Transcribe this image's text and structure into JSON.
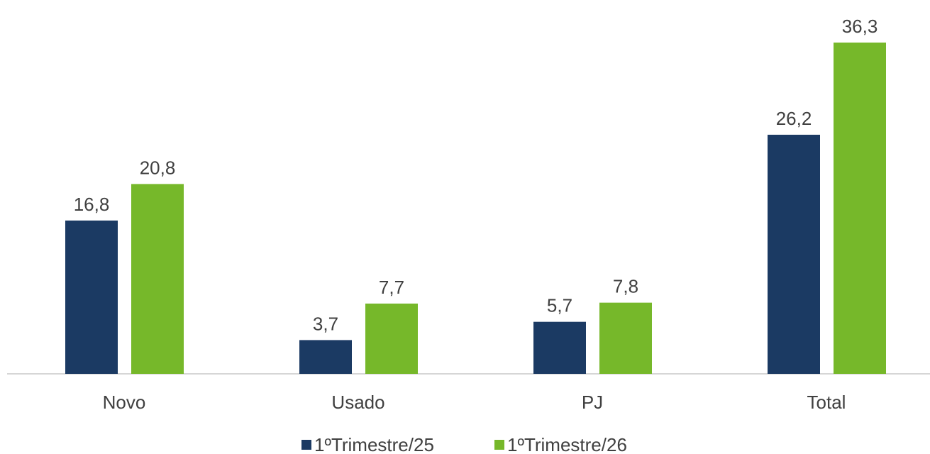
{
  "chart_data": {
    "type": "bar",
    "categories": [
      "Novo",
      "Usado",
      "PJ",
      "Total"
    ],
    "series": [
      {
        "name": "1ºTrimestre/25",
        "color": "#1b3a63",
        "values": [
          16.8,
          3.7,
          5.7,
          26.2
        ],
        "value_labels": [
          "16,8",
          "3,7",
          "5,7",
          "26,2"
        ]
      },
      {
        "name": "1ºTrimestre/26",
        "color": "#76b82a",
        "values": [
          20.8,
          7.7,
          7.8,
          36.3
        ],
        "value_labels": [
          "20,8",
          "7,7",
          "7,8",
          "36,3"
        ]
      }
    ],
    "legend": "bottom"
  }
}
